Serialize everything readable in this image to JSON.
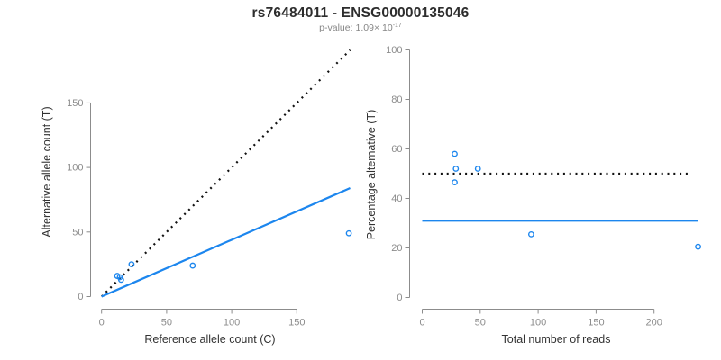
{
  "header": {
    "title": "rs76484011 - ENSG00000135046",
    "pvalue_label": "p-value:",
    "pvalue_base": "1.09× 10",
    "pvalue_exponent": "-17"
  },
  "colors": {
    "accent_blue": "#1c86ee",
    "dotted_black": "#111111",
    "axis_gray": "#8c8c8c",
    "tick_label_gray": "#8c8c8c",
    "title_dark": "#2d2d2d",
    "axis_title_dark": "#333333",
    "background": "#ffffff"
  },
  "chart_data": [
    {
      "type": "scatter",
      "panel": "left",
      "xlabel": "Reference allele count (C)",
      "ylabel": "Alternative allele count (T)",
      "xlim": [
        0,
        193
      ],
      "ylim": [
        0,
        193
      ],
      "xticks": [
        0,
        50,
        100,
        150
      ],
      "yticks": [
        0,
        50,
        100,
        150
      ],
      "grid": false,
      "legend": null,
      "points": [
        [
          12,
          16
        ],
        [
          14,
          15
        ],
        [
          15,
          13
        ],
        [
          23,
          25
        ],
        [
          70,
          24
        ],
        [
          190,
          49
        ]
      ],
      "lines": [
        {
          "name": "identity-line",
          "style": "dotted",
          "color": "#111111",
          "x": [
            0,
            191
          ],
          "y": [
            0,
            191
          ]
        },
        {
          "name": "regression-line",
          "style": "solid",
          "color": "#1c86ee",
          "x": [
            0,
            191
          ],
          "y": [
            0,
            84
          ]
        }
      ]
    },
    {
      "type": "scatter",
      "panel": "right",
      "xlabel": "Total number of reads",
      "ylabel": "Percentage alternative (T)",
      "xlim": [
        0,
        240
      ],
      "ylim": [
        0,
        100
      ],
      "xticks": [
        0,
        50,
        100,
        150,
        200
      ],
      "yticks": [
        0,
        20,
        40,
        60,
        80,
        100
      ],
      "grid": false,
      "legend": null,
      "points": [
        [
          28,
          58
        ],
        [
          29,
          52
        ],
        [
          48,
          52
        ],
        [
          28,
          46.5
        ],
        [
          94,
          25.5
        ],
        [
          238,
          20.5
        ]
      ],
      "lines": [
        {
          "name": "expected-percentage-line",
          "style": "dotted",
          "color": "#111111",
          "x": [
            0,
            232
          ],
          "y": [
            50,
            50
          ]
        },
        {
          "name": "mean-percentage-line",
          "style": "solid",
          "color": "#1c86ee",
          "x": [
            0,
            238
          ],
          "y": [
            31,
            31
          ]
        }
      ]
    }
  ]
}
